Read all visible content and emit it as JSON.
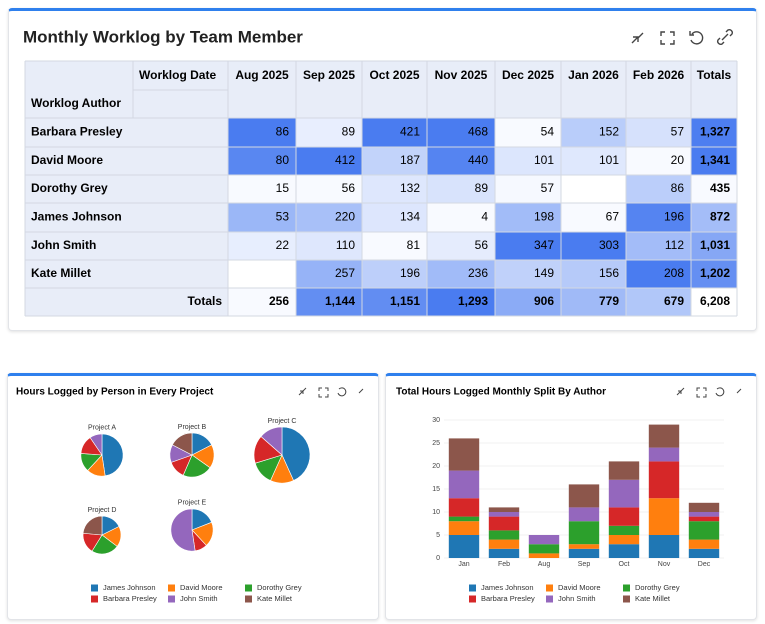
{
  "table": {
    "title": "Monthly Worklog by Team Member",
    "column_header": "Worklog Date",
    "row_header": "Worklog Author",
    "columns": [
      "Aug 2025",
      "Sep 2025",
      "Oct 2025",
      "Nov 2025",
      "Dec 2025",
      "Jan 2026",
      "Feb 2026",
      "Totals"
    ],
    "rows": [
      {
        "label": "Barbara Presley",
        "cells": [
          "86",
          "89",
          "421",
          "468",
          "54",
          "152",
          "57",
          "1,327"
        ]
      },
      {
        "label": "David Moore",
        "cells": [
          "80",
          "412",
          "187",
          "440",
          "101",
          "101",
          "20",
          "1,341"
        ]
      },
      {
        "label": "Dorothy Grey",
        "cells": [
          "15",
          "56",
          "132",
          "89",
          "57",
          null,
          "86",
          "435"
        ]
      },
      {
        "label": "James Johnson",
        "cells": [
          "53",
          "220",
          "134",
          "4",
          "198",
          "67",
          "196",
          "872"
        ]
      },
      {
        "label": "John Smith",
        "cells": [
          "22",
          "110",
          "81",
          "56",
          "347",
          "303",
          "112",
          "1,031"
        ]
      },
      {
        "label": "Kate Millet",
        "cells": [
          null,
          "257",
          "196",
          "236",
          "149",
          "156",
          "208",
          "1,202"
        ]
      },
      {
        "label": "Totals",
        "cells": [
          "256",
          "1,144",
          "1,151",
          "1,293",
          "906",
          "779",
          "679",
          "6,208"
        ]
      }
    ]
  },
  "chart_data": [
    {
      "type": "pie",
      "title": "Hours Logged by Person in Every Project",
      "categories": [
        "Project A",
        "Project B",
        "Project C",
        "Project D",
        "Project E"
      ],
      "series": [
        {
          "name": "James Johnson",
          "color": "#1f77b4",
          "values": [
            10,
            4,
            16,
            3,
            4
          ]
        },
        {
          "name": "David Moore",
          "color": "#ff7f0e",
          "values": [
            3,
            4,
            5,
            3,
            4
          ]
        },
        {
          "name": "Dorothy Grey",
          "color": "#2ca02c",
          "values": [
            3,
            5,
            5,
            4,
            0
          ]
        },
        {
          "name": "Barbara Presley",
          "color": "#d62728",
          "values": [
            3,
            3,
            6,
            3,
            2
          ]
        },
        {
          "name": "John Smith",
          "color": "#9467bd",
          "values": [
            2,
            3,
            5,
            0,
            11
          ]
        },
        {
          "name": "Kate Millet",
          "color": "#8c564b",
          "values": [
            0,
            4,
            0,
            4,
            0
          ]
        }
      ]
    },
    {
      "type": "bar",
      "stacked": true,
      "grid": true,
      "title": "Total Hours Logged Monthly Split By Author",
      "categories": [
        "Jan",
        "Feb",
        "Aug",
        "Sep",
        "Oct",
        "Nov",
        "Dec"
      ],
      "ylim": [
        0,
        30
      ],
      "yticks": [
        0,
        5,
        10,
        15,
        20,
        25,
        30
      ],
      "series": [
        {
          "name": "James Johnson",
          "color": "#1f77b4",
          "values": [
            5,
            2,
            0,
            2,
            3,
            5,
            2
          ]
        },
        {
          "name": "David Moore",
          "color": "#ff7f0e",
          "values": [
            3,
            2,
            1,
            1,
            2,
            8,
            2
          ]
        },
        {
          "name": "Dorothy Grey",
          "color": "#2ca02c",
          "values": [
            1,
            2,
            2,
            5,
            2,
            0,
            4
          ]
        },
        {
          "name": "Barbara Presley",
          "color": "#d62728",
          "values": [
            4,
            3,
            0,
            0,
            4,
            8,
            1
          ]
        },
        {
          "name": "John Smith",
          "color": "#9467bd",
          "values": [
            6,
            1,
            2,
            3,
            6,
            3,
            1
          ]
        },
        {
          "name": "Kate Millet",
          "color": "#8c564b",
          "values": [
            7,
            1,
            0,
            5,
            4,
            5,
            2
          ]
        }
      ]
    }
  ]
}
